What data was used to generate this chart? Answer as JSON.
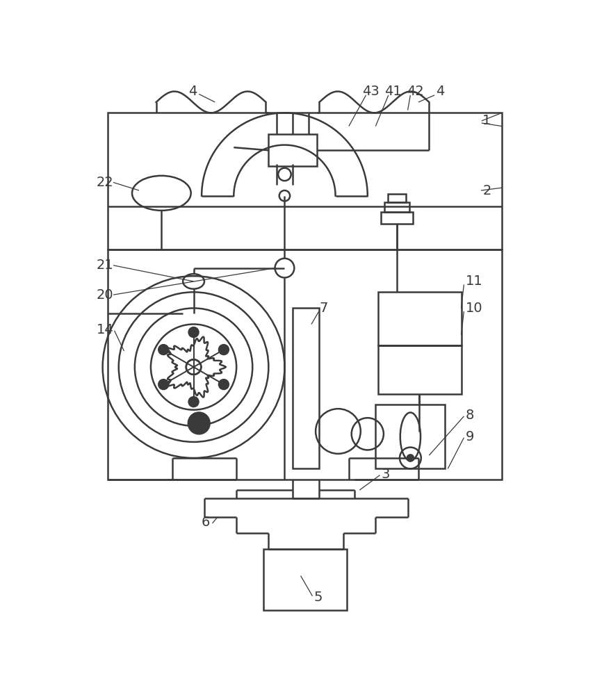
{
  "bg_color": "#ffffff",
  "lc": "#3a3a3a",
  "lw": 1.8,
  "lw_thin": 0.9,
  "fig_w": 8.56,
  "fig_h": 10.0
}
